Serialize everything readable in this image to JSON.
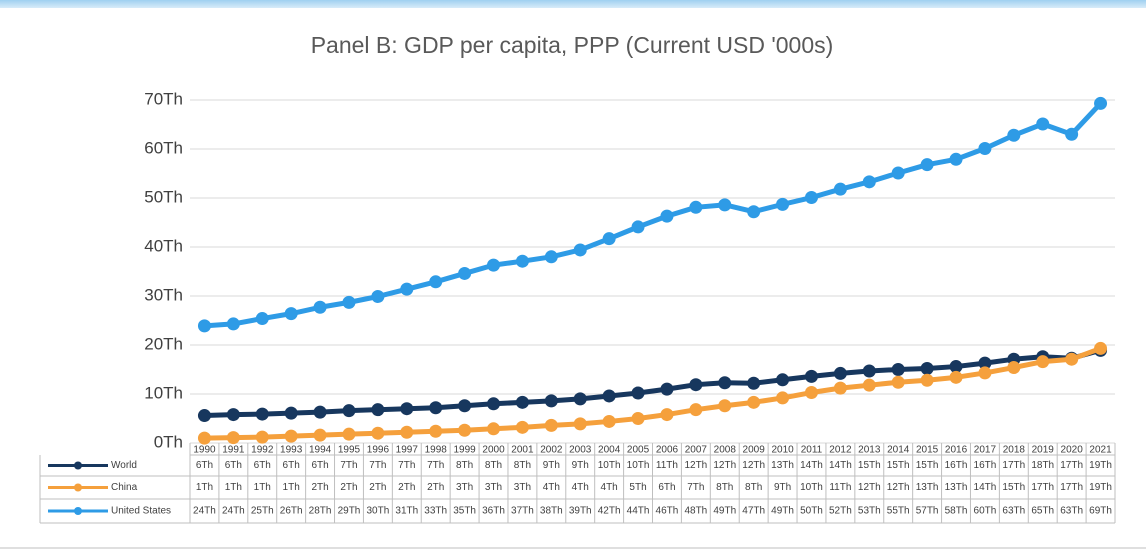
{
  "chart_data": {
    "type": "line",
    "title": "Panel B: GDP per capita, PPP (Current USD '000s)",
    "categories": [
      "1990",
      "1991",
      "1992",
      "1993",
      "1994",
      "1995",
      "1996",
      "1997",
      "1998",
      "1999",
      "2000",
      "2001",
      "2002",
      "2003",
      "2004",
      "2005",
      "2006",
      "2007",
      "2008",
      "2009",
      "2010",
      "2011",
      "2012",
      "2013",
      "2014",
      "2015",
      "2016",
      "2017",
      "2018",
      "2019",
      "2020",
      "2021"
    ],
    "ylim": [
      0,
      70
    ],
    "yticks": [
      {
        "value": 0,
        "label": "0Th"
      },
      {
        "value": 10,
        "label": "10Th"
      },
      {
        "value": 20,
        "label": "20Th"
      },
      {
        "value": 30,
        "label": "30Th"
      },
      {
        "value": 40,
        "label": "40Th"
      },
      {
        "value": 50,
        "label": "50Th"
      },
      {
        "value": 60,
        "label": "60Th"
      },
      {
        "value": 70,
        "label": "70Th"
      }
    ],
    "grid": true,
    "series": [
      {
        "name": "World",
        "color": "#17375e",
        "values": [
          5.6,
          5.8,
          5.9,
          6.1,
          6.3,
          6.6,
          6.8,
          7.0,
          7.2,
          7.6,
          8.0,
          8.3,
          8.6,
          9.0,
          9.6,
          10.2,
          11.0,
          11.9,
          12.3,
          12.2,
          12.9,
          13.6,
          14.2,
          14.7,
          15.0,
          15.2,
          15.6,
          16.3,
          17.1,
          17.6,
          17.3,
          18.9
        ],
        "value_labels": [
          "6Th",
          "6Th",
          "6Th",
          "6Th",
          "6Th",
          "7Th",
          "7Th",
          "7Th",
          "7Th",
          "8Th",
          "8Th",
          "8Th",
          "9Th",
          "9Th",
          "10Th",
          "10Th",
          "11Th",
          "12Th",
          "12Th",
          "12Th",
          "13Th",
          "14Th",
          "14Th",
          "15Th",
          "15Th",
          "15Th",
          "16Th",
          "16Th",
          "17Th",
          "18Th",
          "17Th",
          "19Th"
        ]
      },
      {
        "name": "China",
        "color": "#f5a03c",
        "values": [
          1.0,
          1.1,
          1.2,
          1.4,
          1.6,
          1.8,
          2.0,
          2.2,
          2.4,
          2.6,
          2.9,
          3.2,
          3.6,
          3.9,
          4.4,
          5.0,
          5.8,
          6.8,
          7.6,
          8.3,
          9.2,
          10.3,
          11.2,
          11.8,
          12.4,
          12.8,
          13.4,
          14.3,
          15.4,
          16.6,
          17.1,
          19.3
        ],
        "value_labels": [
          "1Th",
          "1Th",
          "1Th",
          "1Th",
          "2Th",
          "2Th",
          "2Th",
          "2Th",
          "2Th",
          "3Th",
          "3Th",
          "3Th",
          "4Th",
          "4Th",
          "4Th",
          "5Th",
          "6Th",
          "7Th",
          "8Th",
          "8Th",
          "9Th",
          "10Th",
          "11Th",
          "12Th",
          "12Th",
          "13Th",
          "13Th",
          "14Th",
          "15Th",
          "17Th",
          "17Th",
          "19Th"
        ]
      },
      {
        "name": "United States",
        "color": "#2e9be6",
        "values": [
          23.9,
          24.3,
          25.4,
          26.4,
          27.7,
          28.7,
          29.9,
          31.4,
          32.9,
          34.6,
          36.3,
          37.1,
          38.0,
          39.4,
          41.7,
          44.1,
          46.3,
          48.1,
          48.6,
          47.2,
          48.7,
          50.1,
          51.8,
          53.3,
          55.1,
          56.8,
          57.9,
          60.1,
          62.8,
          65.1,
          63.0,
          69.3
        ],
        "value_labels": [
          "24Th",
          "24Th",
          "25Th",
          "26Th",
          "28Th",
          "29Th",
          "30Th",
          "31Th",
          "33Th",
          "35Th",
          "36Th",
          "37Th",
          "38Th",
          "39Th",
          "42Th",
          "44Th",
          "46Th",
          "48Th",
          "49Th",
          "47Th",
          "49Th",
          "50Th",
          "52Th",
          "53Th",
          "55Th",
          "57Th",
          "58Th",
          "60Th",
          "63Th",
          "65Th",
          "63Th",
          "69Th"
        ]
      }
    ]
  }
}
